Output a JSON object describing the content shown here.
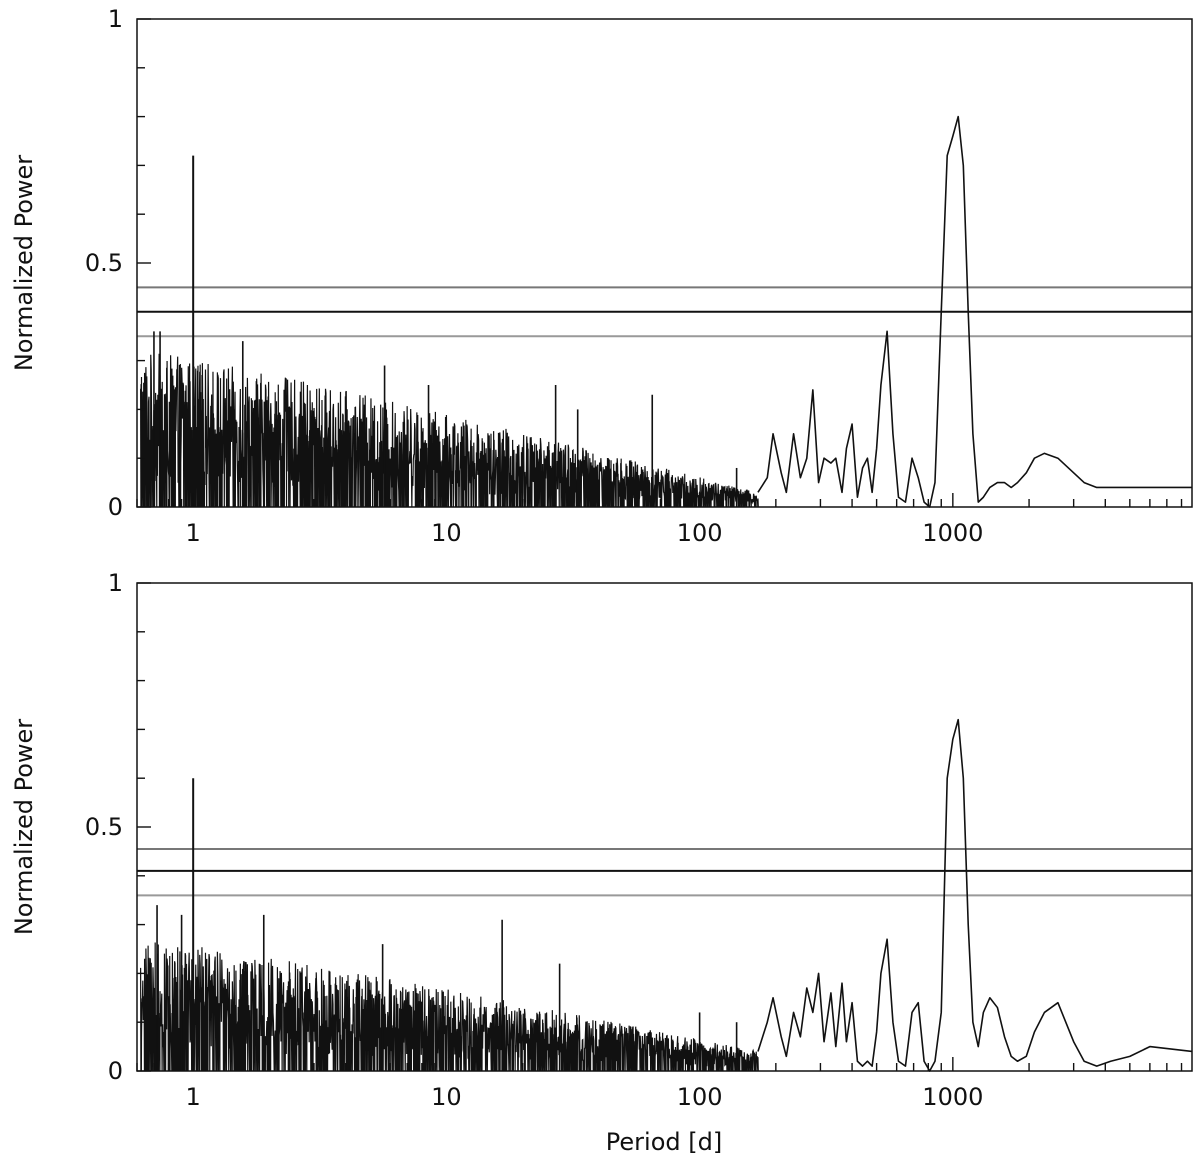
{
  "chart_data": [
    {
      "type": "line",
      "title": "",
      "xlabel": "",
      "ylabel": "Normalized Power",
      "xscale": "log",
      "xlim": [
        0.6,
        8800
      ],
      "ylim": [
        0,
        1
      ],
      "x_ticks": [
        1,
        10,
        100,
        1000
      ],
      "x_tick_labels": [
        "1",
        "10",
        "100",
        "1000"
      ],
      "y_ticks": [
        0,
        0.5,
        1
      ],
      "y_tick_labels": [
        "0",
        "0.5",
        "1"
      ],
      "grid": false,
      "legend": "none",
      "hlines": [
        {
          "y": 0.45,
          "color": "#777777"
        },
        {
          "y": 0.4,
          "color": "#111111"
        },
        {
          "y": 0.35,
          "color": "#999999"
        }
      ],
      "series": [
        {
          "noise_envelope": {
            "x_start": 0.62,
            "x_end": 170,
            "top_start": 0.32,
            "top_end": 0.03,
            "spike_x": [
              0.7,
              0.74,
              1.57,
              5.7,
              8.5,
              27,
              33,
              65,
              140
            ],
            "spike_y": [
              0.36,
              0.36,
              0.34,
              0.29,
              0.25,
              0.25,
              0.2,
              0.23,
              0.08
            ]
          },
          "x": [
            1.0,
            1.0,
            1.0,
            170,
            185,
            195,
            210,
            220,
            235,
            250,
            265,
            280,
            295,
            310,
            330,
            345,
            365,
            380,
            400,
            420,
            440,
            460,
            480,
            500,
            520,
            550,
            580,
            610,
            650,
            690,
            730,
            770,
            810,
            850,
            900,
            950,
            1000,
            1050,
            1100,
            1150,
            1200,
            1260,
            1320,
            1400,
            1500,
            1600,
            1700,
            1800,
            1950,
            2100,
            2300,
            2600,
            3000,
            3300,
            3700,
            4200,
            5000,
            6000,
            8800
          ],
          "y": [
            0.0,
            0.72,
            0.0,
            0.03,
            0.06,
            0.15,
            0.07,
            0.03,
            0.15,
            0.06,
            0.1,
            0.24,
            0.05,
            0.1,
            0.09,
            0.1,
            0.03,
            0.12,
            0.17,
            0.02,
            0.08,
            0.1,
            0.03,
            0.12,
            0.25,
            0.36,
            0.15,
            0.02,
            0.01,
            0.1,
            0.06,
            0.01,
            0.0,
            0.05,
            0.4,
            0.72,
            0.76,
            0.8,
            0.7,
            0.4,
            0.15,
            0.01,
            0.02,
            0.04,
            0.05,
            0.05,
            0.04,
            0.05,
            0.07,
            0.1,
            0.11,
            0.1,
            0.07,
            0.05,
            0.04,
            0.04,
            0.04,
            0.04,
            0.04
          ]
        }
      ]
    },
    {
      "type": "line",
      "title": "",
      "xlabel": "Period [d]",
      "ylabel": "Normalized Power",
      "xscale": "log",
      "xlim": [
        0.6,
        8800
      ],
      "ylim": [
        0,
        1
      ],
      "x_ticks": [
        1,
        10,
        100,
        1000
      ],
      "x_tick_labels": [
        "1",
        "10",
        "100",
        "1000"
      ],
      "y_ticks": [
        0,
        0.5,
        1
      ],
      "y_tick_labels": [
        "0",
        "0.5",
        "1"
      ],
      "grid": false,
      "legend": "none",
      "hlines": [
        {
          "y": 0.455,
          "color": "#777777"
        },
        {
          "y": 0.41,
          "color": "#111111"
        },
        {
          "y": 0.36,
          "color": "#999999"
        }
      ],
      "series": [
        {
          "noise_envelope": {
            "x_start": 0.62,
            "x_end": 170,
            "top_start": 0.27,
            "top_end": 0.04,
            "spike_x": [
              0.72,
              0.9,
              1.9,
              5.6,
              16.6,
              28,
              100,
              140
            ],
            "spike_y": [
              0.34,
              0.32,
              0.32,
              0.26,
              0.31,
              0.22,
              0.12,
              0.1
            ]
          },
          "x": [
            1.0,
            1.0,
            1.0,
            170,
            185,
            195,
            210,
            220,
            235,
            250,
            265,
            280,
            295,
            310,
            330,
            345,
            365,
            380,
            400,
            420,
            440,
            460,
            480,
            500,
            520,
            550,
            580,
            610,
            650,
            690,
            730,
            770,
            810,
            850,
            900,
            950,
            1000,
            1050,
            1100,
            1150,
            1200,
            1260,
            1320,
            1400,
            1500,
            1600,
            1700,
            1800,
            1950,
            2100,
            2300,
            2600,
            3000,
            3300,
            3700,
            4200,
            5000,
            6000,
            8800
          ],
          "y": [
            0.0,
            0.6,
            0.0,
            0.04,
            0.1,
            0.15,
            0.07,
            0.03,
            0.12,
            0.07,
            0.17,
            0.12,
            0.2,
            0.06,
            0.16,
            0.05,
            0.18,
            0.06,
            0.14,
            0.02,
            0.01,
            0.02,
            0.01,
            0.08,
            0.2,
            0.27,
            0.1,
            0.02,
            0.01,
            0.12,
            0.14,
            0.02,
            0.0,
            0.02,
            0.12,
            0.6,
            0.68,
            0.72,
            0.6,
            0.3,
            0.1,
            0.05,
            0.12,
            0.15,
            0.13,
            0.07,
            0.03,
            0.02,
            0.03,
            0.08,
            0.12,
            0.14,
            0.06,
            0.02,
            0.01,
            0.02,
            0.03,
            0.05,
            0.04
          ]
        }
      ]
    }
  ]
}
